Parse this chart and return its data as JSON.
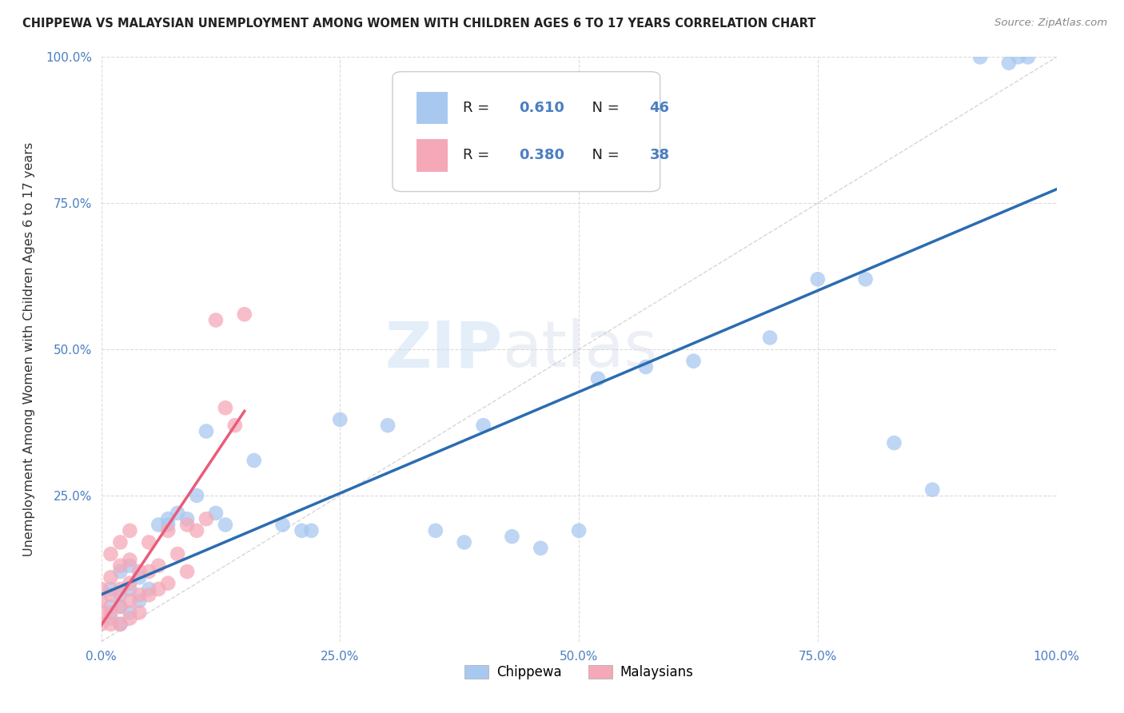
{
  "title": "CHIPPEWA VS MALAYSIAN UNEMPLOYMENT AMONG WOMEN WITH CHILDREN AGES 6 TO 17 YEARS CORRELATION CHART",
  "source": "Source: ZipAtlas.com",
  "ylabel": "Unemployment Among Women with Children Ages 6 to 17 years",
  "xlim": [
    0.0,
    1.0
  ],
  "ylim": [
    0.0,
    1.0
  ],
  "xtick_labels": [
    "0.0%",
    "25.0%",
    "50.0%",
    "75.0%",
    "100.0%"
  ],
  "xtick_positions": [
    0.0,
    0.25,
    0.5,
    0.75,
    1.0
  ],
  "ytick_labels": [
    "25.0%",
    "50.0%",
    "75.0%",
    "100.0%"
  ],
  "ytick_positions": [
    0.25,
    0.5,
    0.75,
    1.0
  ],
  "chippewa_R": 0.61,
  "chippewa_N": 46,
  "malaysian_R": 0.38,
  "malaysian_N": 38,
  "chippewa_color": "#a8c8f0",
  "malaysian_color": "#f5a8b8",
  "chippewa_line_color": "#2b6cb0",
  "malaysian_line_color": "#e85c7a",
  "background_color": "#ffffff",
  "grid_color": "#cccccc",
  "watermark_zip": "ZIP",
  "watermark_atlas": "atlas",
  "chippewa_x": [
    0.01,
    0.01,
    0.01,
    0.02,
    0.02,
    0.02,
    0.02,
    0.03,
    0.03,
    0.03,
    0.04,
    0.04,
    0.05,
    0.06,
    0.07,
    0.07,
    0.08,
    0.09,
    0.1,
    0.11,
    0.12,
    0.13,
    0.16,
    0.19,
    0.21,
    0.22,
    0.25,
    0.3,
    0.35,
    0.38,
    0.4,
    0.43,
    0.46,
    0.5,
    0.52,
    0.57,
    0.62,
    0.7,
    0.75,
    0.8,
    0.83,
    0.87,
    0.92,
    0.95,
    0.96,
    0.97
  ],
  "chippewa_y": [
    0.04,
    0.06,
    0.09,
    0.03,
    0.06,
    0.08,
    0.12,
    0.05,
    0.09,
    0.13,
    0.07,
    0.11,
    0.09,
    0.2,
    0.2,
    0.21,
    0.22,
    0.21,
    0.25,
    0.36,
    0.22,
    0.2,
    0.31,
    0.2,
    0.19,
    0.19,
    0.38,
    0.37,
    0.19,
    0.17,
    0.37,
    0.18,
    0.16,
    0.19,
    0.45,
    0.47,
    0.48,
    0.52,
    0.62,
    0.62,
    0.34,
    0.26,
    1.0,
    0.99,
    1.0,
    1.0
  ],
  "malaysian_x": [
    0.0,
    0.0,
    0.0,
    0.0,
    0.01,
    0.01,
    0.01,
    0.01,
    0.01,
    0.02,
    0.02,
    0.02,
    0.02,
    0.02,
    0.03,
    0.03,
    0.03,
    0.03,
    0.03,
    0.04,
    0.04,
    0.04,
    0.05,
    0.05,
    0.05,
    0.06,
    0.06,
    0.07,
    0.07,
    0.08,
    0.09,
    0.09,
    0.1,
    0.11,
    0.12,
    0.13,
    0.14,
    0.15
  ],
  "malaysian_y": [
    0.03,
    0.05,
    0.07,
    0.09,
    0.03,
    0.05,
    0.08,
    0.11,
    0.15,
    0.03,
    0.06,
    0.09,
    0.13,
    0.17,
    0.04,
    0.07,
    0.1,
    0.14,
    0.19,
    0.05,
    0.08,
    0.12,
    0.08,
    0.12,
    0.17,
    0.09,
    0.13,
    0.1,
    0.19,
    0.15,
    0.12,
    0.2,
    0.19,
    0.21,
    0.55,
    0.4,
    0.37,
    0.56
  ]
}
